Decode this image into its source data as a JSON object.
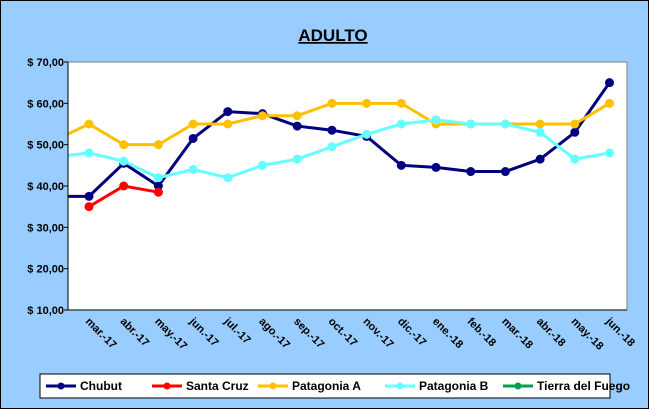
{
  "chart_data": {
    "type": "line",
    "title": "ADULTO",
    "categories": [
      null,
      "mar.-17",
      "abr.-17",
      "may.-17",
      "jun.-17",
      "jul.-17",
      "ago.-17",
      "sep.-17",
      "oct.-17",
      "nov.-17",
      "dic.-17",
      "ene.-18",
      "feb.-18",
      "mar.-18",
      "abr.-18",
      "may.-18",
      "jun.-18"
    ],
    "series": [
      {
        "name": "Chubut",
        "color": "#000080",
        "values": [
          37.5,
          37.5,
          45.5,
          40,
          51.5,
          58,
          57.5,
          54.5,
          53.5,
          52,
          45,
          44.5,
          43.5,
          43.5,
          46.5,
          53,
          65
        ]
      },
      {
        "name": "Santa Cruz",
        "color": "#ff0000",
        "values": [
          null,
          35,
          40,
          38.5,
          null,
          null,
          null,
          null,
          null,
          null,
          null,
          null,
          null,
          null,
          null,
          null,
          null
        ]
      },
      {
        "name": "Patagonia A",
        "color": "#ffc000",
        "values": [
          51,
          55,
          50,
          50,
          55,
          55,
          57,
          57,
          60,
          60,
          60,
          55,
          55,
          55,
          55,
          55,
          60
        ]
      },
      {
        "name": "Patagonia B",
        "color": "#66ffff",
        "values": [
          47,
          48,
          46,
          42,
          44,
          42,
          45,
          46.5,
          49.5,
          52.5,
          55,
          56,
          55,
          55,
          53,
          46.5,
          48
        ]
      },
      {
        "name": "Tierra del Fuego",
        "color": "#00a050",
        "values": [
          null,
          null,
          null,
          null,
          null,
          null,
          null,
          null,
          null,
          null,
          null,
          null,
          null,
          null,
          null,
          null,
          null
        ]
      }
    ],
    "ylim": [
      10,
      70
    ],
    "yticks": [
      {
        "value": 10,
        "label": "$ 10,00"
      },
      {
        "value": 20,
        "label": "$ 20,00"
      },
      {
        "value": 30,
        "label": "$ 30,00"
      },
      {
        "value": 40,
        "label": "$ 40,00"
      },
      {
        "value": 50,
        "label": "$ 50,00"
      },
      {
        "value": 60,
        "label": "$ 60,00"
      },
      {
        "value": 70,
        "label": "$ 70,00"
      }
    ],
    "grid": false,
    "legend": "bottom"
  }
}
